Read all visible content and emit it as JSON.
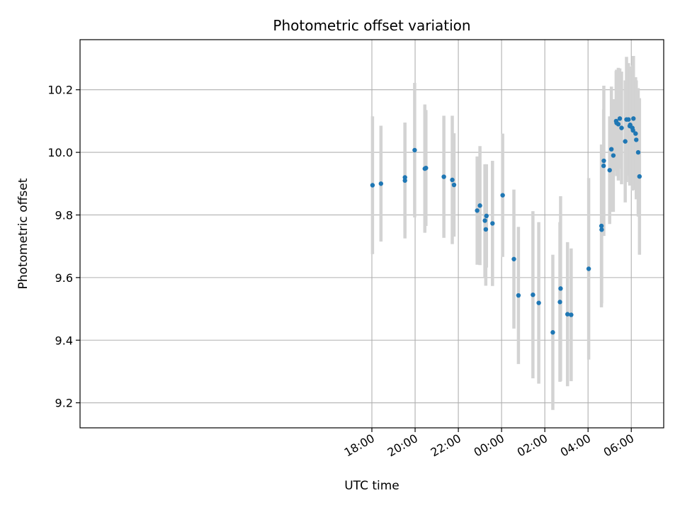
{
  "chart_data": {
    "type": "scatter",
    "title": "Photometric offset variation",
    "xlabel": "UTC time",
    "ylabel": "Photometric offset",
    "x_unit": "hours (relative to 00:00 UTC; negative = previous day)",
    "xlim": [
      -19.5,
      7.5
    ],
    "ylim": [
      9.12,
      10.36
    ],
    "grid": true,
    "x_ticks": [
      {
        "value": -6,
        "label": "18:00"
      },
      {
        "value": -4,
        "label": "20:00"
      },
      {
        "value": -2,
        "label": "22:00"
      },
      {
        "value": 0,
        "label": "00:00"
      },
      {
        "value": 2,
        "label": "02:00"
      },
      {
        "value": 4,
        "label": "04:00"
      },
      {
        "value": 6,
        "label": "06:00"
      }
    ],
    "y_ticks": [
      {
        "value": 9.2,
        "label": "9.2"
      },
      {
        "value": 9.4,
        "label": "9.4"
      },
      {
        "value": 9.6,
        "label": "9.6"
      },
      {
        "value": 9.8,
        "label": "9.8"
      },
      {
        "value": 10.0,
        "label": "10.0"
      },
      {
        "value": 10.2,
        "label": "10.2"
      }
    ],
    "colors": {
      "marker": "#1f77b4",
      "errorbar": "#d3d3d3",
      "grid": "#b0b0b0"
    },
    "series": [
      {
        "points": [
          {
            "x": -5.97,
            "y": 9.895,
            "err": 0.22
          },
          {
            "x": -5.58,
            "y": 9.9,
            "err": 0.185
          },
          {
            "x": -4.47,
            "y": 9.92,
            "err": 0.175
          },
          {
            "x": -4.47,
            "y": 9.91,
            "err": 0.185
          },
          {
            "x": -4.02,
            "y": 10.007,
            "err": 0.215
          },
          {
            "x": -3.55,
            "y": 9.948,
            "err": 0.205
          },
          {
            "x": -3.5,
            "y": 9.95,
            "err": 0.185
          },
          {
            "x": -2.67,
            "y": 9.922,
            "err": 0.195
          },
          {
            "x": -2.28,
            "y": 9.912,
            "err": 0.205
          },
          {
            "x": -2.2,
            "y": 9.896,
            "err": 0.165
          },
          {
            "x": -1.13,
            "y": 9.814,
            "err": 0.173
          },
          {
            "x": -1.0,
            "y": 9.83,
            "err": 0.19
          },
          {
            "x": -0.77,
            "y": 9.782,
            "err": 0.18
          },
          {
            "x": -0.73,
            "y": 9.754,
            "err": 0.18
          },
          {
            "x": -0.7,
            "y": 9.797,
            "err": 0.165
          },
          {
            "x": -0.42,
            "y": 9.773,
            "err": 0.2
          },
          {
            "x": 0.05,
            "y": 9.863,
            "err": 0.197
          },
          {
            "x": 0.57,
            "y": 9.659,
            "err": 0.222
          },
          {
            "x": 0.78,
            "y": 9.543,
            "err": 0.219
          },
          {
            "x": 1.45,
            "y": 9.545,
            "err": 0.267
          },
          {
            "x": 1.72,
            "y": 9.519,
            "err": 0.258
          },
          {
            "x": 2.37,
            "y": 9.425,
            "err": 0.248
          },
          {
            "x": 2.7,
            "y": 9.522,
            "err": 0.255
          },
          {
            "x": 2.73,
            "y": 9.565,
            "err": 0.295
          },
          {
            "x": 3.05,
            "y": 9.483,
            "err": 0.23
          },
          {
            "x": 3.22,
            "y": 9.481,
            "err": 0.212
          },
          {
            "x": 4.03,
            "y": 9.628,
            "err": 0.29
          },
          {
            "x": 4.62,
            "y": 9.765,
            "err": 0.26
          },
          {
            "x": 4.63,
            "y": 9.753,
            "err": 0.235
          },
          {
            "x": 4.72,
            "y": 9.957,
            "err": 0.18
          },
          {
            "x": 4.73,
            "y": 9.973,
            "err": 0.24
          },
          {
            "x": 5.0,
            "y": 9.943,
            "err": 0.172
          },
          {
            "x": 5.08,
            "y": 10.01,
            "err": 0.2
          },
          {
            "x": 5.17,
            "y": 9.99,
            "err": 0.18
          },
          {
            "x": 5.3,
            "y": 10.1,
            "err": 0.16
          },
          {
            "x": 5.32,
            "y": 10.094,
            "err": 0.17
          },
          {
            "x": 5.4,
            "y": 10.09,
            "err": 0.18
          },
          {
            "x": 5.47,
            "y": 10.108,
            "err": 0.16
          },
          {
            "x": 5.55,
            "y": 10.078,
            "err": 0.18
          },
          {
            "x": 5.72,
            "y": 10.035,
            "err": 0.195
          },
          {
            "x": 5.78,
            "y": 10.105,
            "err": 0.2
          },
          {
            "x": 5.87,
            "y": 10.105,
            "err": 0.18
          },
          {
            "x": 5.93,
            "y": 10.084,
            "err": 0.19
          },
          {
            "x": 5.95,
            "y": 10.088,
            "err": 0.18
          },
          {
            "x": 6.05,
            "y": 10.078,
            "err": 0.2
          },
          {
            "x": 6.08,
            "y": 10.07,
            "err": 0.19
          },
          {
            "x": 6.1,
            "y": 10.108,
            "err": 0.2
          },
          {
            "x": 6.2,
            "y": 10.06,
            "err": 0.18
          },
          {
            "x": 6.23,
            "y": 10.04,
            "err": 0.19
          },
          {
            "x": 6.32,
            "y": 10.0,
            "err": 0.205
          },
          {
            "x": 6.38,
            "y": 9.923,
            "err": 0.25
          }
        ]
      }
    ]
  }
}
